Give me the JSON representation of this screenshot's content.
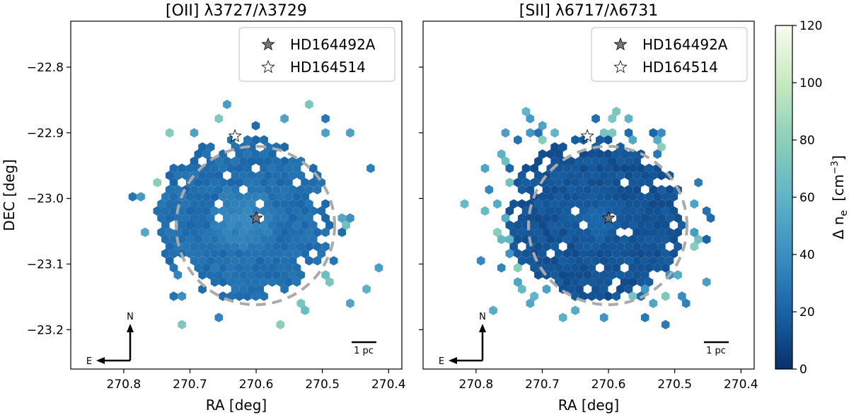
{
  "figure": {
    "colorbar": {
      "label": "Δ n",
      "label_sub": "e",
      "label_unit": "[cm",
      "label_unit_sup": "−3",
      "label_unit_close": "]",
      "vmin": 0,
      "vmax": 120,
      "ticks": [
        "0",
        "20",
        "40",
        "60",
        "80",
        "100",
        "120"
      ],
      "tick_values": [
        0,
        20,
        40,
        60,
        80,
        100,
        120
      ],
      "colors": {
        "low": "#08306b",
        "mid": "#4a98c9",
        "high": "#f7fcf0"
      }
    },
    "compass": {
      "north": "N",
      "east": "E"
    },
    "scalebar_label": "1 pc",
    "legend": [
      {
        "label": "HD164492A",
        "marker": "star-filled",
        "color": "#777777"
      },
      {
        "label": "HD164514",
        "marker": "star-open",
        "color": "#ffffff"
      }
    ]
  },
  "chart_data": [
    {
      "type": "hexbin",
      "title": "[OII] λ3727/λ3729",
      "xlabel": "RA [deg]",
      "ylabel": "DEC [deg]",
      "xlim": [
        270.88,
        270.38
      ],
      "ylim": [
        -23.26,
        -22.73
      ],
      "xticks": [
        "270.8",
        "270.7",
        "270.6",
        "270.5",
        "270.4"
      ],
      "xtick_values": [
        270.8,
        270.7,
        270.6,
        270.5,
        270.4
      ],
      "yticks": [
        "−22.8",
        "−22.9",
        "−23.0",
        "−23.1",
        "−23.2"
      ],
      "ytick_values": [
        -22.8,
        -22.9,
        -23.0,
        -23.1,
        -23.2
      ],
      "stars": [
        {
          "name": "HD164492A",
          "ra": 270.6,
          "dec": -23.03
        },
        {
          "name": "HD164514",
          "ra": 270.632,
          "dec": -22.905
        }
      ],
      "circle": {
        "center_ra": 270.6,
        "center_dec": -23.03,
        "radius_deg": 0.121
      },
      "typical_delta_ne": 25,
      "center_delta_ne": 38
    },
    {
      "type": "hexbin",
      "title": "[SII] λ6717/λ6731",
      "xlabel": "RA [deg]",
      "ylabel": "",
      "xlim": [
        270.88,
        270.38
      ],
      "ylim": [
        -23.26,
        -22.73
      ],
      "xticks": [
        "270.8",
        "270.7",
        "270.6",
        "270.5",
        "270.4"
      ],
      "xtick_values": [
        270.8,
        270.7,
        270.6,
        270.5,
        270.4
      ],
      "yticks": [],
      "ytick_values": [
        -22.8,
        -22.9,
        -23.0,
        -23.1,
        -23.2
      ],
      "stars": [
        {
          "name": "HD164492A",
          "ra": 270.6,
          "dec": -23.03
        },
        {
          "name": "HD164514",
          "ra": 270.632,
          "dec": -22.905
        }
      ],
      "circle": {
        "center_ra": 270.6,
        "center_dec": -23.03,
        "radius_deg": 0.121
      },
      "typical_delta_ne": 14,
      "center_delta_ne": 22
    }
  ]
}
